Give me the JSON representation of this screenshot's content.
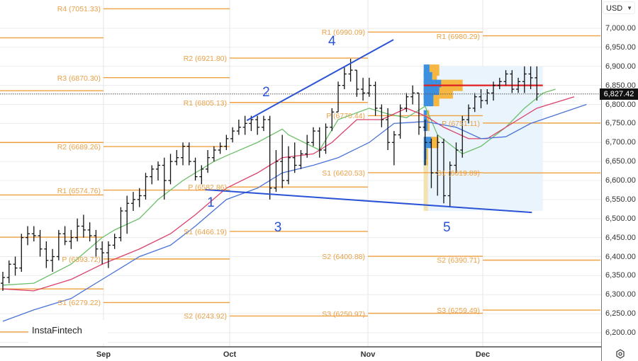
{
  "currency_selector": {
    "value": "USD"
  },
  "current_price": "6,827.42",
  "watermark": "InstaFintech",
  "colors": {
    "pivot": "#f0a040",
    "bars": "#111111",
    "ma_fast": "#6cbf6c",
    "ma_mid": "#d9416a",
    "ma_slow": "#4a72d8",
    "trendline": "#2a52d6",
    "poc": "#e02020",
    "profile_blue": "#3d8fe0",
    "profile_orange": "#f5b642",
    "profile_bg": "#eaf4fc"
  },
  "chart_data": {
    "type": "ohlc",
    "ylim": [
      6180,
      7060
    ],
    "y_ticks": [
      "7,000.00",
      "6,950.00",
      "6,900.00",
      "6,850.00",
      "6,800.00",
      "6,750.00",
      "6,700.00",
      "6,650.00",
      "6,600.00",
      "6,550.00",
      "6,500.00",
      "6,450.00",
      "6,400.00",
      "6,350.00",
      "6,300.00",
      "6,250.00",
      "6,200.00"
    ],
    "y_tick_values": [
      7000,
      6950,
      6900,
      6850,
      6800,
      6750,
      6700,
      6650,
      6600,
      6550,
      6500,
      6450,
      6400,
      6350,
      6300,
      6250,
      6200
    ],
    "x_ticks": [
      "Sep",
      "Oct",
      "Nov",
      "Dec"
    ],
    "grid": true,
    "last_price": 6827.42,
    "bars_ohlc": [
      [
        6330,
        6360,
        6310,
        6345
      ],
      [
        6345,
        6390,
        6330,
        6380
      ],
      [
        6380,
        6400,
        6350,
        6370
      ],
      [
        6370,
        6460,
        6360,
        6450
      ],
      [
        6450,
        6480,
        6430,
        6460
      ],
      [
        6460,
        6480,
        6440,
        6455
      ],
      [
        6455,
        6470,
        6400,
        6420
      ],
      [
        6420,
        6440,
        6370,
        6390
      ],
      [
        6390,
        6420,
        6360,
        6400
      ],
      [
        6400,
        6470,
        6390,
        6460
      ],
      [
        6460,
        6480,
        6430,
        6440
      ],
      [
        6440,
        6470,
        6420,
        6450
      ],
      [
        6450,
        6500,
        6440,
        6480
      ],
      [
        6480,
        6510,
        6450,
        6470
      ],
      [
        6470,
        6490,
        6440,
        6455
      ],
      [
        6455,
        6470,
        6400,
        6420
      ],
      [
        6420,
        6440,
        6380,
        6410
      ],
      [
        6410,
        6440,
        6370,
        6430
      ],
      [
        6430,
        6460,
        6420,
        6450
      ],
      [
        6450,
        6530,
        6440,
        6520
      ],
      [
        6520,
        6560,
        6460,
        6540
      ],
      [
        6540,
        6570,
        6520,
        6550
      ],
      [
        6550,
        6580,
        6530,
        6560
      ],
      [
        6560,
        6620,
        6550,
        6610
      ],
      [
        6610,
        6640,
        6590,
        6630
      ],
      [
        6630,
        6650,
        6600,
        6640
      ],
      [
        6640,
        6660,
        6550,
        6600
      ],
      [
        6600,
        6670,
        6590,
        6650
      ],
      [
        6650,
        6680,
        6640,
        6660
      ],
      [
        6660,
        6700,
        6640,
        6690
      ],
      [
        6690,
        6700,
        6640,
        6650
      ],
      [
        6650,
        6660,
        6600,
        6610
      ],
      [
        6610,
        6640,
        6590,
        6630
      ],
      [
        6630,
        6680,
        6620,
        6660
      ],
      [
        6660,
        6690,
        6650,
        6680
      ],
      [
        6680,
        6700,
        6670,
        6690
      ],
      [
        6690,
        6720,
        6680,
        6710
      ],
      [
        6710,
        6740,
        6700,
        6730
      ],
      [
        6730,
        6760,
        6720,
        6740
      ],
      [
        6740,
        6770,
        6720,
        6750
      ],
      [
        6750,
        6770,
        6730,
        6760
      ],
      [
        6760,
        6770,
        6720,
        6740
      ],
      [
        6740,
        6770,
        6730,
        6760
      ],
      [
        6760,
        6770,
        6550,
        6580
      ],
      [
        6580,
        6680,
        6570,
        6650
      ],
      [
        6650,
        6720,
        6580,
        6600
      ],
      [
        6600,
        6690,
        6590,
        6660
      ],
      [
        6660,
        6700,
        6620,
        6640
      ],
      [
        6640,
        6680,
        6630,
        6670
      ],
      [
        6670,
        6720,
        6660,
        6700
      ],
      [
        6700,
        6740,
        6690,
        6730
      ],
      [
        6730,
        6740,
        6660,
        6680
      ],
      [
        6680,
        6750,
        6670,
        6740
      ],
      [
        6740,
        6790,
        6730,
        6780
      ],
      [
        6780,
        6860,
        6780,
        6850
      ],
      [
        6850,
        6900,
        6840,
        6880
      ],
      [
        6880,
        6920,
        6860,
        6890
      ],
      [
        6890,
        6890,
        6820,
        6840
      ],
      [
        6840,
        6870,
        6810,
        6830
      ],
      [
        6830,
        6870,
        6820,
        6850
      ],
      [
        6850,
        6860,
        6770,
        6790
      ],
      [
        6790,
        6800,
        6740,
        6760
      ],
      [
        6760,
        6790,
        6680,
        6700
      ],
      [
        6700,
        6730,
        6640,
        6720
      ],
      [
        6720,
        6800,
        6710,
        6790
      ],
      [
        6790,
        6830,
        6780,
        6820
      ],
      [
        6820,
        6850,
        6800,
        6830
      ],
      [
        6830,
        6830,
        6720,
        6740
      ],
      [
        6740,
        6760,
        6640,
        6700
      ],
      [
        6700,
        6710,
        6580,
        6620
      ],
      [
        6620,
        6720,
        6560,
        6700
      ],
      [
        6700,
        6710,
        6540,
        6560
      ],
      [
        6560,
        6650,
        6530,
        6640
      ],
      [
        6640,
        6700,
        6620,
        6680
      ],
      [
        6680,
        6770,
        6660,
        6760
      ],
      [
        6760,
        6800,
        6750,
        6790
      ],
      [
        6790,
        6830,
        6780,
        6820
      ],
      [
        6820,
        6840,
        6790,
        6810
      ],
      [
        6810,
        6840,
        6800,
        6830
      ],
      [
        6830,
        6860,
        6810,
        6850
      ],
      [
        6850,
        6870,
        6840,
        6860
      ],
      [
        6860,
        6890,
        6850,
        6880
      ],
      [
        6880,
        6890,
        6830,
        6840
      ],
      [
        6840,
        6870,
        6830,
        6860
      ],
      [
        6860,
        6900,
        6830,
        6880
      ],
      [
        6880,
        6900,
        6840,
        6870
      ],
      [
        6870,
        6900,
        6810,
        6827.42
      ]
    ],
    "moving_averages": [
      {
        "color": "#6cbf6c",
        "points": [
          [
            0,
            6325
          ],
          [
            5,
            6330
          ],
          [
            11,
            6380
          ],
          [
            16,
            6450
          ],
          [
            18,
            6470
          ],
          [
            22,
            6500
          ],
          [
            25,
            6550
          ],
          [
            29,
            6600
          ],
          [
            34,
            6650
          ],
          [
            36,
            6665
          ],
          [
            41,
            6700
          ],
          [
            45,
            6735
          ],
          [
            46,
            6720
          ],
          [
            51,
            6680
          ],
          [
            54,
            6760
          ],
          [
            59,
            6790
          ],
          [
            62,
            6775
          ],
          [
            65,
            6765
          ],
          [
            68,
            6795
          ],
          [
            70,
            6720
          ],
          [
            74,
            6670
          ],
          [
            77,
            6690
          ],
          [
            81,
            6740
          ],
          [
            84,
            6790
          ],
          [
            87,
            6830
          ],
          [
            89,
            6840
          ]
        ]
      },
      {
        "color": "#d9416a",
        "points": [
          [
            0,
            6315
          ],
          [
            5,
            6310
          ],
          [
            11,
            6340
          ],
          [
            16,
            6380
          ],
          [
            22,
            6420
          ],
          [
            27,
            6460
          ],
          [
            31,
            6510
          ],
          [
            36,
            6580
          ],
          [
            41,
            6620
          ],
          [
            45,
            6660
          ],
          [
            50,
            6670
          ],
          [
            53,
            6700
          ],
          [
            57,
            6760
          ],
          [
            61,
            6760
          ],
          [
            65,
            6790
          ],
          [
            68,
            6770
          ],
          [
            71,
            6740
          ],
          [
            75,
            6710
          ],
          [
            78,
            6710
          ],
          [
            82,
            6750
          ],
          [
            86,
            6790
          ],
          [
            92,
            6820
          ]
        ]
      },
      {
        "color": "#4a72d8",
        "points": [
          [
            0,
            6230
          ],
          [
            5,
            6260
          ],
          [
            11,
            6290
          ],
          [
            17,
            6350
          ],
          [
            22,
            6400
          ],
          [
            27,
            6430
          ],
          [
            31,
            6480
          ],
          [
            36,
            6550
          ],
          [
            41,
            6580
          ],
          [
            45,
            6620
          ],
          [
            50,
            6640
          ],
          [
            54,
            6660
          ],
          [
            59,
            6700
          ],
          [
            63,
            6750
          ],
          [
            68,
            6755
          ],
          [
            73,
            6740
          ],
          [
            77,
            6710
          ],
          [
            81,
            6715
          ],
          [
            85,
            6750
          ],
          [
            94,
            6800
          ]
        ]
      }
    ],
    "pivot_periods": [
      {
        "period": "Aug",
        "levels": [
          {
            "label": "",
            "value": 6975
          },
          {
            "label": "",
            "value": 6836
          },
          {
            "label": "",
            "value": 6700
          },
          {
            "label": "",
            "value": 6562
          },
          {
            "label": "",
            "value": 6451
          },
          {
            "label": "",
            "value": 6315
          },
          {
            "label": "",
            "value": 6202
          }
        ]
      },
      {
        "period": "Sep",
        "levels": [
          {
            "label": "R4 (7051.33)",
            "value": 7051.33
          },
          {
            "label": "R3 (6870.30)",
            "value": 6870.3
          },
          {
            "label": "R2 (6689.26)",
            "value": 6689.26
          },
          {
            "label": "R1 (6574.76)",
            "value": 6574.76
          },
          {
            "label": "P (6393.72)",
            "value": 6393.72
          },
          {
            "label": "S1 (6279.22)",
            "value": 6279.22
          }
        ]
      },
      {
        "period": "Oct",
        "levels": [
          {
            "label": "R2 (6921.80)",
            "value": 6921.8
          },
          {
            "label": "R1 (6805.13)",
            "value": 6805.13
          },
          {
            "label": "P (6582.86)",
            "value": 6582.86
          },
          {
            "label": "S1 (6466.19)",
            "value": 6466.19
          },
          {
            "label": "S2 (6243.92)",
            "value": 6243.92
          }
        ]
      },
      {
        "period": "Nov",
        "levels": [
          {
            "label": "R1 (6990.09)",
            "value": 6990.09
          },
          {
            "label": "P (6770.44)",
            "value": 6770.44
          },
          {
            "label": "S1 (6620.53)",
            "value": 6620.53
          },
          {
            "label": "S2 (6400.88)",
            "value": 6400.88
          },
          {
            "label": "S3 (6250.97)",
            "value": 6250.97
          }
        ]
      },
      {
        "period": "Dec",
        "levels": [
          {
            "label": "R1 (6980.29)",
            "value": 6980.29
          },
          {
            "label": "P (6751.11)",
            "value": 6751.11
          },
          {
            "label": "S1 (6619.89)",
            "value": 6619.89
          },
          {
            "label": "S2 (6390.71)",
            "value": 6390.71
          },
          {
            "label": "S3 (6259.49)",
            "value": 6259.49
          }
        ]
      }
    ],
    "trendlines": [
      {
        "from": [
          39.3,
          6758
        ],
        "to": [
          62.9,
          6970
        ]
      },
      {
        "from": [
          32.6,
          6576
        ],
        "to": [
          85.2,
          6516
        ]
      }
    ],
    "wave_labels": [
      {
        "text": "1",
        "at": [
          33.5,
          6540
        ]
      },
      {
        "text": "2",
        "at": [
          42.4,
          6830
        ]
      },
      {
        "text": "3",
        "at": [
          44.3,
          6475
        ]
      },
      {
        "text": "4",
        "at": [
          53,
          6965
        ]
      },
      {
        "text": "5",
        "at": [
          71.5,
          6475
        ]
      }
    ],
    "volume_profile": {
      "from_bar": 68,
      "to_bar": 86.5,
      "price_range": [
        6520,
        6900
      ],
      "poc": 6850,
      "rows": [
        {
          "price": 6890,
          "blue": 0.15,
          "orange": 0.25
        },
        {
          "price": 6870,
          "blue": 0.22,
          "orange": 0.12
        },
        {
          "price": 6850,
          "blue": 0.45,
          "orange": 0.55
        },
        {
          "price": 6830,
          "blue": 0.4,
          "orange": 0.35
        },
        {
          "price": 6810,
          "blue": 0.25,
          "orange": 0.15
        },
        {
          "price": 6770,
          "blue": 0.08,
          "orange": 0.06
        },
        {
          "price": 6745,
          "blue": 0.1,
          "orange": 0.05
        },
        {
          "price": 6700,
          "blue": 0.2,
          "orange": 0.18
        },
        {
          "price": 6670,
          "blue": 0.07,
          "orange": 0.04
        },
        {
          "price": 6640,
          "blue": 0.06,
          "orange": 0.05
        }
      ]
    }
  }
}
